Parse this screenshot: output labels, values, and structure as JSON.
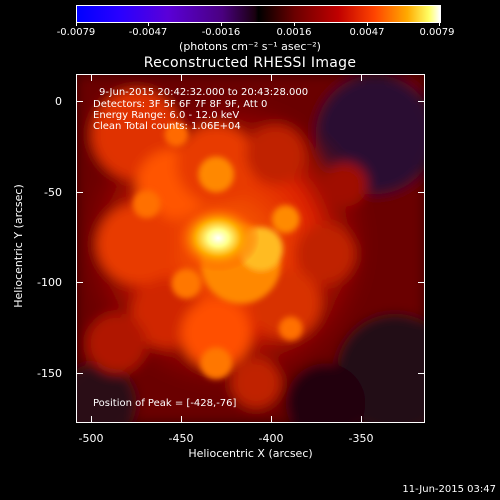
{
  "colorbar": {
    "ticks": [
      "-0.0079",
      "-0.0047",
      "-0.0016",
      "0.0016",
      "0.0047",
      "0.0079"
    ],
    "units": "(photons cm⁻² s⁻¹ asec⁻²)"
  },
  "title": "Reconstructed RHESSI Image",
  "info": {
    "time": "9-Jun-2015 20:42:32.000 to 20:43:28.000",
    "detectors": "Detectors: 3F 5F 6F 7F 8F 9F, Att 0",
    "energy": "Energy Range: 6.0 - 12.0 keV",
    "clean": "Clean     Total counts: 1.06E+04",
    "peak": "Position of Peak = [-428,-76]"
  },
  "axes": {
    "xlabel": "Heliocentric X (arcsec)",
    "ylabel": "Heliocentric Y (arcsec)",
    "xticks": [
      "-500",
      "-450",
      "-400",
      "-350"
    ],
    "yticks": [
      "0",
      "-50",
      "-100",
      "-150"
    ]
  },
  "timestamp": "11-Jun-2015 03:47"
}
